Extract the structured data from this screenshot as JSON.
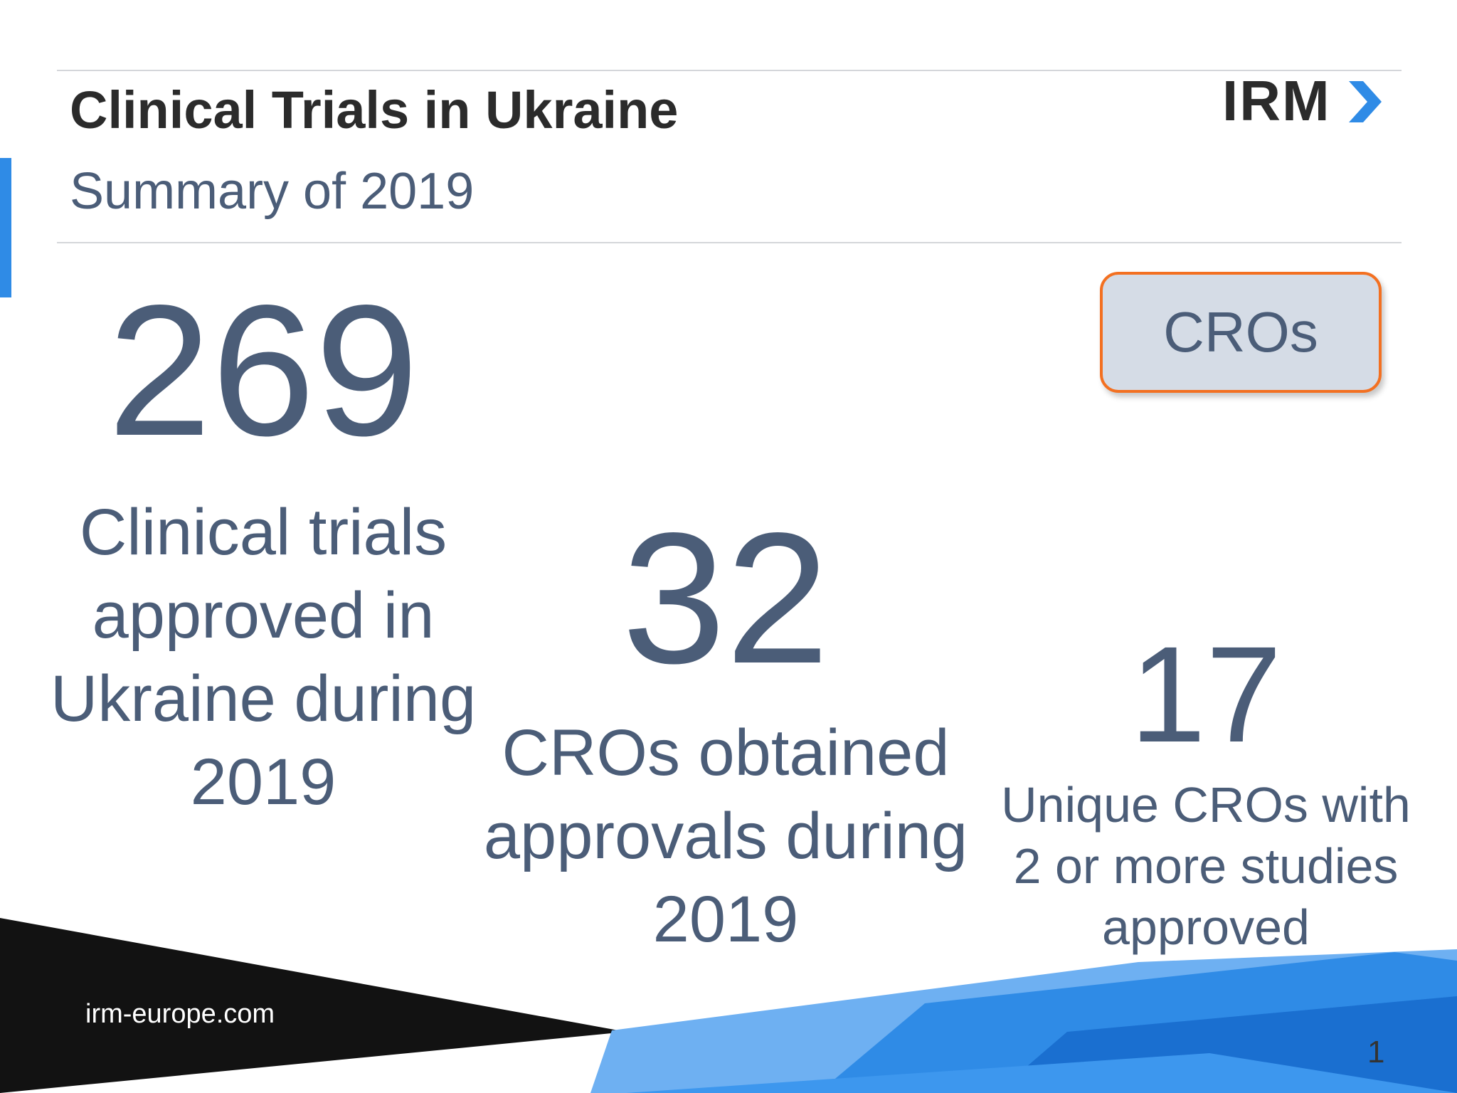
{
  "header": {
    "title": "Clinical Trials in Ukraine",
    "subtitle": "Summary of 2019",
    "logo_text": "IRM"
  },
  "button": {
    "label": "CROs"
  },
  "stats": [
    {
      "value": "269",
      "description": "Clinical trials approved in Ukraine during 2019"
    },
    {
      "value": "32",
      "description": "CROs obtained approvals during 2019"
    },
    {
      "value": "17",
      "description": "Unique CROs with 2 or more studies approved"
    }
  ],
  "footer": {
    "website": "irm-europe.com",
    "page_number": "1"
  },
  "colors": {
    "text_slate": "#4b5d78",
    "accent_orange": "#f37021",
    "accent_blue": "#2f8be6",
    "button_fill": "#d5dce6",
    "footer_dark": "#121212"
  }
}
